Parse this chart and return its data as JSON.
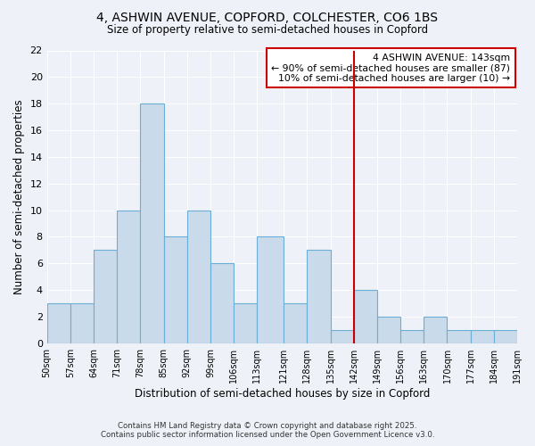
{
  "title": "4, ASHWIN AVENUE, COPFORD, COLCHESTER, CO6 1BS",
  "subtitle": "Size of property relative to semi-detached houses in Copford",
  "xlabel": "Distribution of semi-detached houses by size in Copford",
  "ylabel": "Number of semi-detached properties",
  "bin_edges": [
    50,
    57,
    64,
    71,
    78,
    85,
    92,
    99,
    106,
    113,
    121,
    128,
    135,
    142,
    149,
    156,
    163,
    170,
    177,
    184,
    191
  ],
  "bin_labels": [
    "50sqm",
    "57sqm",
    "64sqm",
    "71sqm",
    "78sqm",
    "85sqm",
    "92sqm",
    "99sqm",
    "106sqm",
    "113sqm",
    "121sqm",
    "128sqm",
    "135sqm",
    "142sqm",
    "149sqm",
    "156sqm",
    "163sqm",
    "170sqm",
    "177sqm",
    "184sqm",
    "191sqm"
  ],
  "counts": [
    3,
    3,
    7,
    10,
    18,
    8,
    10,
    6,
    3,
    8,
    3,
    7,
    1,
    4,
    2,
    1,
    2,
    1,
    1,
    1
  ],
  "bar_color": "#c9daea",
  "bar_edge_color": "#6baed6",
  "vline_x": 142,
  "vline_color": "#cc0000",
  "annotation_title": "4 ASHWIN AVENUE: 143sqm",
  "annotation_line1": "← 90% of semi-detached houses are smaller (87)",
  "annotation_line2": "10% of semi-detached houses are larger (10) →",
  "annotation_box_edge": "#cc0000",
  "ylim": [
    0,
    22
  ],
  "yticks": [
    0,
    2,
    4,
    6,
    8,
    10,
    12,
    14,
    16,
    18,
    20,
    22
  ],
  "background_color": "#eef2f8",
  "grid_color": "#ffffff",
  "footer_line1": "Contains HM Land Registry data © Crown copyright and database right 2025.",
  "footer_line2": "Contains public sector information licensed under the Open Government Licence v3.0."
}
